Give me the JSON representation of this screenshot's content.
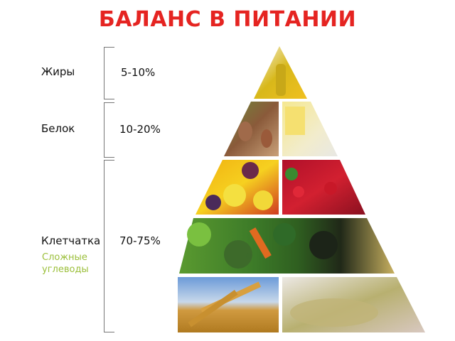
{
  "title": "БАЛАНС В ПИТАНИИ",
  "groups": [
    {
      "label": "Жиры",
      "percent": "5-10%"
    },
    {
      "label": "Белок",
      "percent": "10-20%"
    },
    {
      "label": "Клетчатка",
      "percent": "70-75%",
      "sublabel_line1": "Сложные",
      "sublabel_line2": "углеводы"
    }
  ],
  "colors": {
    "title": "#e52421",
    "sublabel": "#9bbf3a",
    "bracket": "#777777"
  },
  "pyramid_tiers": [
    {
      "tier": 1,
      "images": [
        "olive-oil"
      ]
    },
    {
      "tier": 2,
      "images": [
        "beans-legumes",
        "dairy-cheese"
      ]
    },
    {
      "tier": 3,
      "images": [
        "fruits",
        "berries"
      ]
    },
    {
      "tier": 4,
      "images": [
        "vegetables"
      ]
    },
    {
      "tier": 5,
      "images": [
        "wheat-grains",
        "sprouts"
      ]
    }
  ]
}
